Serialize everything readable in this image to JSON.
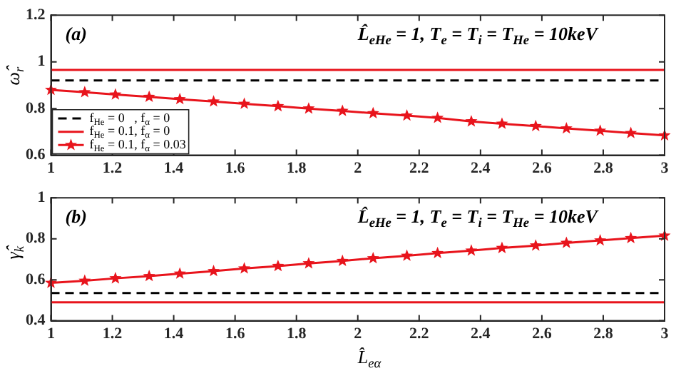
{
  "chart_data": [
    {
      "type": "line",
      "title": "L̂$_{eHe}$ = 1, T$_{e}$ = T$_{i}$ = T$_{He}$ = 10keV",
      "ylabel": "ω̂$_{r}$",
      "annotations": [
        "(a)"
      ],
      "xlim": [
        1,
        3
      ],
      "xticks": [
        1,
        1.2,
        1.4,
        1.6,
        1.8,
        2,
        2.2,
        2.4,
        2.6,
        2.8,
        3
      ],
      "ylim": [
        0.6,
        1.2
      ],
      "yticks": [
        0.6,
        0.8,
        1,
        1.2
      ],
      "grid": false,
      "legend": "bottom left",
      "series": [
        {
          "name": "f$_{He}$ = 0   , f$_{α}$ = 0",
          "color": "#000000",
          "line_style": "dashed",
          "marker": "none",
          "x": [
            1,
            3
          ],
          "values": [
            0.92,
            0.92
          ]
        },
        {
          "name": "f$_{He}$ = 0.1, f$_{α}$ = 0",
          "color": "#e8141c",
          "line_style": "solid",
          "marker": "none",
          "x": [
            1,
            3
          ],
          "values": [
            0.965,
            0.965
          ]
        },
        {
          "name": "f$_{He}$ = 0.1, f$_{α}$ = 0.03",
          "color": "#e8141c",
          "line_style": "solid",
          "marker": "star",
          "x": [
            1,
            1.11,
            1.21,
            1.32,
            1.42,
            1.53,
            1.63,
            1.74,
            1.84,
            1.95,
            2.05,
            2.16,
            2.26,
            2.37,
            2.47,
            2.58,
            2.68,
            2.79,
            2.89,
            3
          ],
          "values": [
            0.88,
            0.87,
            0.86,
            0.85,
            0.84,
            0.83,
            0.82,
            0.81,
            0.8,
            0.79,
            0.78,
            0.77,
            0.76,
            0.745,
            0.735,
            0.725,
            0.715,
            0.705,
            0.695,
            0.685
          ]
        }
      ]
    },
    {
      "type": "line",
      "title": "L̂$_{eHe}$ = 1, T$_{e}$ = T$_{i}$ = T$_{He}$ = 10keV",
      "xlabel": "L̂$_{eα}$",
      "ylabel": "γ̂$_{k}$",
      "annotations": [
        "(b)"
      ],
      "xlim": [
        1,
        3
      ],
      "xticks": [
        1,
        1.2,
        1.4,
        1.6,
        1.8,
        2,
        2.2,
        2.4,
        2.6,
        2.8,
        3
      ],
      "ylim": [
        0.4,
        1
      ],
      "yticks": [
        0.4,
        0.6,
        0.8,
        1
      ],
      "grid": false,
      "legend": false,
      "series": [
        {
          "color": "#000000",
          "line_style": "dashed",
          "marker": "none",
          "x": [
            1,
            3
          ],
          "values": [
            0.535,
            0.535
          ]
        },
        {
          "color": "#e8141c",
          "line_style": "solid",
          "marker": "none",
          "x": [
            1,
            3
          ],
          "values": [
            0.49,
            0.49
          ]
        },
        {
          "color": "#e8141c",
          "line_style": "solid",
          "marker": "star",
          "x": [
            1,
            1.11,
            1.21,
            1.32,
            1.42,
            1.53,
            1.63,
            1.74,
            1.84,
            1.95,
            2.05,
            2.16,
            2.26,
            2.37,
            2.47,
            2.58,
            2.68,
            2.79,
            2.89,
            3
          ],
          "values": [
            0.585,
            0.595,
            0.607,
            0.618,
            0.63,
            0.642,
            0.655,
            0.667,
            0.68,
            0.692,
            0.705,
            0.717,
            0.73,
            0.742,
            0.755,
            0.767,
            0.78,
            0.792,
            0.803,
            0.815
          ]
        }
      ]
    }
  ]
}
